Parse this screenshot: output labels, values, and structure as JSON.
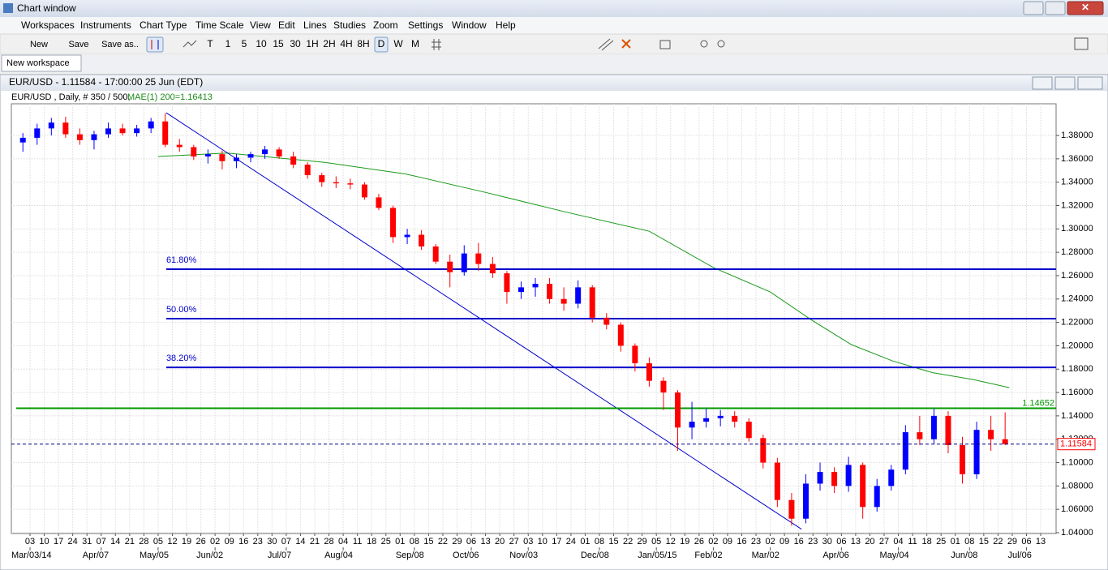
{
  "window": {
    "title": "Chart window"
  },
  "menu": [
    "Workspaces",
    "Instruments",
    "Chart Type",
    "Time Scale",
    "View",
    "Edit",
    "Lines",
    "Studies",
    "Zoom",
    "Settings",
    "Window",
    "Help"
  ],
  "toolbar": {
    "buttons": [
      "New",
      "Save",
      "Save as.."
    ],
    "timeframes": [
      "T",
      "1",
      "5",
      "10",
      "15",
      "30",
      "1H",
      "2H",
      "4H",
      "8H",
      "D",
      "W",
      "M"
    ]
  },
  "tabs": [
    "New workspace"
  ],
  "chart_window": {
    "title": "EUR/USD - 1.11584 - 17:00:00  25 Jun (EDT)",
    "info": "EUR/USD , Daily, # 350 / 500,",
    "indicator": "MAE(1) 200=1.16413"
  },
  "chart_data": {
    "type": "candlestick",
    "grid": true,
    "up_color": "#0000ff",
    "down_color": "#ff0000",
    "xlim": [
      -1.31,
      72.08
    ],
    "ylim": [
      1.0393,
      1.4071
    ],
    "yticks": [
      {
        "value": 1.04,
        "label": "1.04000"
      },
      {
        "value": 1.06,
        "label": "1.06000"
      },
      {
        "value": 1.08,
        "label": "1.08000"
      },
      {
        "value": 1.1,
        "label": "1.10000"
      },
      {
        "value": 1.12,
        "label": "1.12000"
      },
      {
        "value": 1.14,
        "label": "1.14000"
      },
      {
        "value": 1.16,
        "label": "1.16000"
      },
      {
        "value": 1.18,
        "label": "1.18000"
      },
      {
        "value": 1.2,
        "label": "1.20000"
      },
      {
        "value": 1.22,
        "label": "1.22000"
      },
      {
        "value": 1.24,
        "label": "1.24000"
      },
      {
        "value": 1.26,
        "label": "1.26000"
      },
      {
        "value": 1.28,
        "label": "1.28000"
      },
      {
        "value": 1.3,
        "label": "1.30000"
      },
      {
        "value": 1.32,
        "label": "1.32000"
      },
      {
        "value": 1.34,
        "label": "1.34000"
      },
      {
        "value": 1.36,
        "label": "1.36000"
      },
      {
        "value": 1.38,
        "label": "1.38000"
      }
    ],
    "xticks": [
      {
        "value": 0,
        "label": "03"
      },
      {
        "value": 1,
        "label": "10"
      },
      {
        "value": 2,
        "label": "17"
      },
      {
        "value": 3,
        "label": "24"
      },
      {
        "value": 4,
        "label": "31"
      },
      {
        "value": 5,
        "label": "07"
      },
      {
        "value": 6,
        "label": "14"
      },
      {
        "value": 7,
        "label": "21"
      },
      {
        "value": 8,
        "label": "28"
      },
      {
        "value": 9,
        "label": "05"
      },
      {
        "value": 10,
        "label": "12"
      },
      {
        "value": 11,
        "label": "19"
      },
      {
        "value": 12,
        "label": "26"
      },
      {
        "value": 13,
        "label": "02"
      },
      {
        "value": 14,
        "label": "09"
      },
      {
        "value": 15,
        "label": "16"
      },
      {
        "value": 16,
        "label": "23"
      },
      {
        "value": 17,
        "label": "30"
      },
      {
        "value": 18,
        "label": "07"
      },
      {
        "value": 19,
        "label": "14"
      },
      {
        "value": 20,
        "label": "21"
      },
      {
        "value": 21,
        "label": "28"
      },
      {
        "value": 22,
        "label": "04"
      },
      {
        "value": 23,
        "label": "11"
      },
      {
        "value": 24,
        "label": "18"
      },
      {
        "value": 25,
        "label": "25"
      },
      {
        "value": 26,
        "label": "01"
      },
      {
        "value": 27,
        "label": "08"
      },
      {
        "value": 28,
        "label": "15"
      },
      {
        "value": 29,
        "label": "22"
      },
      {
        "value": 30,
        "label": "29"
      },
      {
        "value": 31,
        "label": "06"
      },
      {
        "value": 32,
        "label": "13"
      },
      {
        "value": 33,
        "label": "20"
      },
      {
        "value": 34,
        "label": "27"
      },
      {
        "value": 35,
        "label": "03"
      },
      {
        "value": 36,
        "label": "10"
      },
      {
        "value": 37,
        "label": "17"
      },
      {
        "value": 38,
        "label": "24"
      },
      {
        "value": 39,
        "label": "01"
      },
      {
        "value": 40,
        "label": "08"
      },
      {
        "value": 41,
        "label": "15"
      },
      {
        "value": 42,
        "label": "22"
      },
      {
        "value": 43,
        "label": "29"
      },
      {
        "value": 44,
        "label": "05"
      },
      {
        "value": 45,
        "label": "12"
      },
      {
        "value": 46,
        "label": "19"
      },
      {
        "value": 47,
        "label": "26"
      },
      {
        "value": 48,
        "label": "02"
      },
      {
        "value": 49,
        "label": "09"
      },
      {
        "value": 50,
        "label": "16"
      },
      {
        "value": 51,
        "label": "23"
      },
      {
        "value": 52,
        "label": "02"
      },
      {
        "value": 53,
        "label": "09"
      },
      {
        "value": 54,
        "label": "16"
      },
      {
        "value": 55,
        "label": "23"
      },
      {
        "value": 56,
        "label": "30"
      },
      {
        "value": 57,
        "label": "06"
      },
      {
        "value": 58,
        "label": "13"
      },
      {
        "value": 59,
        "label": "20"
      },
      {
        "value": 60,
        "label": "27"
      },
      {
        "value": 61,
        "label": "04"
      },
      {
        "value": 62,
        "label": "11"
      },
      {
        "value": 63,
        "label": "18"
      },
      {
        "value": 64,
        "label": "25"
      },
      {
        "value": 65,
        "label": "01"
      },
      {
        "value": 66,
        "label": "08"
      },
      {
        "value": 67,
        "label": "15"
      },
      {
        "value": 68,
        "label": "22"
      },
      {
        "value": 69,
        "label": "29"
      },
      {
        "value": 70,
        "label": "06"
      },
      {
        "value": 71,
        "label": "13"
      }
    ],
    "month_labels": [
      {
        "value": 0,
        "label": "Mar/03/14"
      },
      {
        "value": 5,
        "label": "Apr/07"
      },
      {
        "value": 9,
        "label": "May/05"
      },
      {
        "value": 13,
        "label": "Jun/02"
      },
      {
        "value": 18,
        "label": "Jul/07"
      },
      {
        "value": 22,
        "label": "Aug/04"
      },
      {
        "value": 27,
        "label": "Sep/08"
      },
      {
        "value": 31,
        "label": "Oct/06"
      },
      {
        "value": 35,
        "label": "Nov/03"
      },
      {
        "value": 40,
        "label": "Dec/08"
      },
      {
        "value": 44,
        "label": "Jan/05/15"
      },
      {
        "value": 48,
        "label": "Feb/02"
      },
      {
        "value": 52,
        "label": "Mar/02"
      },
      {
        "value": 57,
        "label": "Apr/06"
      },
      {
        "value": 61,
        "label": "May/04"
      },
      {
        "value": 66,
        "label": "Jun/08"
      },
      {
        "value": 70,
        "label": "Jul/06"
      }
    ],
    "x": [
      -0.5,
      0.5,
      1.5,
      2.5,
      3.5,
      4.5,
      5.5,
      6.5,
      7.5,
      8.5,
      9.5,
      10.5,
      11.5,
      12.5,
      13.5,
      14.5,
      15.5,
      16.5,
      17.5,
      18.5,
      19.5,
      20.5,
      21.5,
      22.5,
      23.5,
      24.5,
      25.5,
      26.5,
      27.5,
      28.5,
      29.5,
      30.5,
      31.5,
      32.5,
      33.5,
      34.5,
      35.5,
      36.5,
      37.5,
      38.5,
      39.5,
      40.5,
      41.5,
      42.5,
      43.5,
      44.5,
      45.5,
      46.5,
      47.5,
      48.5,
      49.5,
      50.5,
      51.5,
      52.5,
      53.5,
      54.5,
      55.5,
      56.5,
      57.5,
      58.5,
      59.5,
      60.5,
      61.5,
      62.5,
      63.5,
      64.5,
      65.5,
      66.5,
      67.5,
      68.5
    ],
    "open": [
      1.374,
      1.378,
      1.386,
      1.391,
      1.381,
      1.376,
      1.381,
      1.386,
      1.382,
      1.386,
      1.392,
      1.372,
      1.37,
      1.362,
      1.364,
      1.358,
      1.361,
      1.364,
      1.368,
      1.362,
      1.355,
      1.346,
      1.34,
      1.339,
      1.338,
      1.327,
      1.318,
      1.293,
      1.295,
      1.285,
      1.272,
      1.263,
      1.279,
      1.27,
      1.262,
      1.246,
      1.25,
      1.253,
      1.24,
      1.236,
      1.25,
      1.224,
      1.218,
      1.2,
      1.185,
      1.17,
      1.16,
      1.13,
      1.135,
      1.138,
      1.14,
      1.135,
      1.121,
      1.1,
      1.068,
      1.052,
      1.082,
      1.092,
      1.08,
      1.098,
      1.062,
      1.08,
      1.094,
      1.126,
      1.12,
      1.14,
      1.115,
      1.09,
      1.128,
      1.12
    ],
    "high": [
      1.382,
      1.39,
      1.395,
      1.396,
      1.386,
      1.384,
      1.391,
      1.39,
      1.389,
      1.395,
      1.399,
      1.377,
      1.372,
      1.368,
      1.367,
      1.364,
      1.366,
      1.371,
      1.37,
      1.366,
      1.357,
      1.348,
      1.345,
      1.343,
      1.34,
      1.33,
      1.32,
      1.3,
      1.299,
      1.287,
      1.278,
      1.286,
      1.288,
      1.276,
      1.264,
      1.255,
      1.258,
      1.258,
      1.25,
      1.256,
      1.252,
      1.228,
      1.22,
      1.202,
      1.19,
      1.173,
      1.162,
      1.152,
      1.146,
      1.145,
      1.144,
      1.138,
      1.124,
      1.104,
      1.074,
      1.09,
      1.1,
      1.096,
      1.105,
      1.1,
      1.086,
      1.098,
      1.132,
      1.14,
      1.146,
      1.144,
      1.122,
      1.135,
      1.14,
      1.143
    ],
    "low": [
      1.366,
      1.372,
      1.38,
      1.378,
      1.372,
      1.368,
      1.378,
      1.38,
      1.379,
      1.382,
      1.37,
      1.366,
      1.359,
      1.356,
      1.351,
      1.352,
      1.357,
      1.36,
      1.36,
      1.352,
      1.343,
      1.336,
      1.335,
      1.334,
      1.325,
      1.316,
      1.288,
      1.287,
      1.282,
      1.27,
      1.25,
      1.26,
      1.264,
      1.258,
      1.236,
      1.24,
      1.242,
      1.236,
      1.23,
      1.232,
      1.22,
      1.214,
      1.195,
      1.178,
      1.165,
      1.145,
      1.11,
      1.12,
      1.13,
      1.131,
      1.13,
      1.118,
      1.095,
      1.062,
      1.046,
      1.048,
      1.076,
      1.074,
      1.075,
      1.052,
      1.058,
      1.076,
      1.09,
      1.115,
      1.116,
      1.108,
      1.082,
      1.086,
      1.11,
      1.115
    ],
    "close": [
      1.378,
      1.386,
      1.391,
      1.381,
      1.376,
      1.381,
      1.386,
      1.382,
      1.386,
      1.392,
      1.372,
      1.37,
      1.362,
      1.364,
      1.358,
      1.361,
      1.364,
      1.368,
      1.362,
      1.355,
      1.346,
      1.34,
      1.339,
      1.338,
      1.327,
      1.318,
      1.293,
      1.295,
      1.285,
      1.272,
      1.263,
      1.279,
      1.27,
      1.262,
      1.246,
      1.25,
      1.253,
      1.24,
      1.236,
      1.25,
      1.224,
      1.218,
      1.2,
      1.185,
      1.17,
      1.16,
      1.13,
      1.135,
      1.138,
      1.14,
      1.135,
      1.121,
      1.1,
      1.068,
      1.052,
      1.082,
      1.092,
      1.08,
      1.098,
      1.062,
      1.08,
      1.094,
      1.126,
      1.12,
      1.14,
      1.115,
      1.09,
      1.128,
      1.12,
      1.11584
    ],
    "ma": {
      "color": "#1a9a1a",
      "x": [
        9.0,
        13.85,
        20.7,
        26.4,
        32.1,
        37.8,
        43.5,
        48.0,
        52.0,
        54.9,
        57.7,
        60.6,
        63.4,
        66.3,
        68.8
      ],
      "values": [
        1.362,
        1.365,
        1.357,
        1.347,
        1.331,
        1.314,
        1.298,
        1.267,
        1.246,
        1.222,
        1.201,
        1.187,
        1.177,
        1.171,
        1.16413
      ]
    },
    "trendline": {
      "color": "#0000cc",
      "x": [
        9.57,
        54.2
      ],
      "values": [
        1.3994,
        1.043
      ]
    },
    "fib_color": "#0000cc",
    "fib_levels": [
      {
        "value": 1.2655,
        "label": "61.80%"
      },
      {
        "value": 1.2232,
        "label": "50.00%"
      },
      {
        "value": 1.1815,
        "label": "38.20%"
      }
    ],
    "resistance": {
      "value": 1.14652,
      "color": "#009900"
    },
    "current": {
      "value": 1.11584,
      "color": "#000080",
      "label_color": "#ff0000"
    }
  }
}
